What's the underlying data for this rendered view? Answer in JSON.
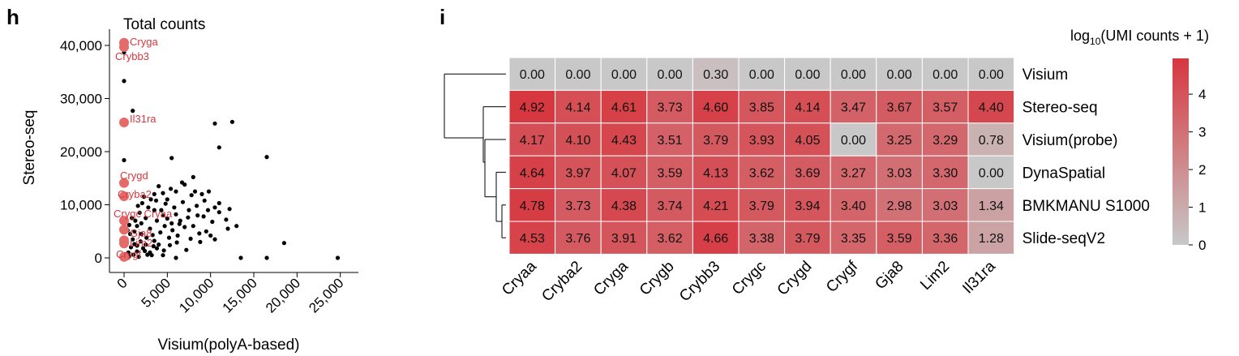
{
  "panels": {
    "h": "h",
    "i": "i"
  },
  "chart_data": [
    {
      "type": "scatter",
      "title": "Total counts",
      "xlabel": "Visium(polyA-based)",
      "ylabel": "Stereo-seq",
      "xlim": [
        -1000,
        26000
      ],
      "ylim": [
        -1000,
        42000
      ],
      "xticks": [
        0,
        5000,
        10000,
        15000,
        20000,
        25000
      ],
      "xtick_labels": [
        "0",
        "5,000",
        "10,000",
        "15,000",
        "20,000",
        "25,000"
      ],
      "yticks": [
        0,
        10000,
        20000,
        30000,
        40000
      ],
      "ytick_labels": [
        "0",
        "10,000",
        "20,000",
        "30,000",
        "40,000"
      ],
      "highlight_color": "#e46b68",
      "point_color": "#000000",
      "highlighted": [
        {
          "label": "Cryga",
          "x": 0,
          "y": 40500
        },
        {
          "label": "Crybb3",
          "x": 0,
          "y": 39700
        },
        {
          "label": "Il31ra",
          "x": 0,
          "y": 25500
        },
        {
          "label": "Crygd",
          "x": 0,
          "y": 14100
        },
        {
          "label": "Cryba2",
          "x": 0,
          "y": 11600
        },
        {
          "label": "Crygc",
          "x": 0,
          "y": 7000
        },
        {
          "label": "Cryaa",
          "x": 0,
          "y": 5300
        },
        {
          "label": "Gja8",
          "x": 0,
          "y": 3300
        },
        {
          "label": "Lim2",
          "x": 0,
          "y": 2700
        },
        {
          "label": "Crygf",
          "x": 0,
          "y": 200
        }
      ],
      "highlight_labels": [
        {
          "label": "Cryga"
        },
        {
          "label": "Crybb3"
        },
        {
          "label": "Il31ra"
        },
        {
          "label": "Crygd"
        },
        {
          "label": "Cryba2"
        },
        {
          "label": "Crygc Cryaa"
        },
        {
          "label": "Gja8"
        },
        {
          "label": "Lim2"
        },
        {
          "label": "Crygf"
        }
      ],
      "points": [
        [
          0,
          38700
        ],
        [
          0,
          33300
        ],
        [
          1000,
          27700
        ],
        [
          0,
          18400
        ],
        [
          10500,
          25300
        ],
        [
          12500,
          25600
        ],
        [
          11000,
          20800
        ],
        [
          16500,
          19000
        ],
        [
          5500,
          18800
        ],
        [
          18500,
          2800
        ],
        [
          13500,
          0
        ],
        [
          16500,
          0
        ],
        [
          24700,
          0
        ],
        [
          3500,
          12000
        ],
        [
          4000,
          13500
        ],
        [
          5000,
          11000
        ],
        [
          6000,
          12500
        ],
        [
          7000,
          13800
        ],
        [
          8000,
          15200
        ],
        [
          9000,
          12000
        ],
        [
          9800,
          12500
        ],
        [
          10500,
          9500
        ],
        [
          11000,
          10300
        ],
        [
          7500,
          9000
        ],
        [
          8500,
          8000
        ],
        [
          6500,
          7000
        ],
        [
          9500,
          5000
        ],
        [
          10500,
          3500
        ],
        [
          12000,
          5500
        ],
        [
          11800,
          7200
        ],
        [
          8800,
          3000
        ],
        [
          7200,
          1500
        ],
        [
          4500,
          500
        ],
        [
          6000,
          0
        ],
        [
          3500,
          9000
        ],
        [
          4500,
          8000
        ],
        [
          5500,
          6500
        ],
        [
          2500,
          7500
        ],
        [
          3000,
          5500
        ],
        [
          2000,
          4500
        ],
        [
          1500,
          6000
        ],
        [
          1000,
          3500
        ],
        [
          2500,
          2500
        ],
        [
          3500,
          3200
        ],
        [
          4200,
          4800
        ],
        [
          5200,
          3800
        ],
        [
          6200,
          4200
        ],
        [
          7000,
          5800
        ],
        [
          8000,
          6000
        ],
        [
          9200,
          7800
        ],
        [
          10200,
          6800
        ],
        [
          6800,
          10500
        ],
        [
          5800,
          9500
        ],
        [
          4800,
          10200
        ],
        [
          3800,
          7000
        ],
        [
          2800,
          9500
        ],
        [
          1800,
          8500
        ],
        [
          1200,
          5000
        ],
        [
          800,
          2000
        ],
        [
          1500,
          1200
        ],
        [
          2200,
          1800
        ],
        [
          3000,
          1000
        ],
        [
          3800,
          1800
        ],
        [
          500,
          1000
        ],
        [
          300,
          3000
        ],
        [
          700,
          4500
        ],
        [
          2000,
          6500
        ],
        [
          2600,
          3800
        ],
        [
          3300,
          4300
        ],
        [
          4000,
          2500
        ],
        [
          4700,
          6000
        ],
        [
          5600,
          5200
        ],
        [
          6400,
          6400
        ],
        [
          7400,
          7600
        ],
        [
          8400,
          9800
        ],
        [
          9300,
          10800
        ],
        [
          7800,
          11800
        ],
        [
          6000,
          8200
        ],
        [
          5000,
          7400
        ],
        [
          4300,
          9000
        ],
        [
          3700,
          10800
        ],
        [
          2300,
          11500
        ],
        [
          1600,
          9800
        ],
        [
          900,
          7500
        ],
        [
          1200,
          2600
        ],
        [
          1900,
          3100
        ],
        [
          2700,
          600
        ],
        [
          3400,
          2200
        ],
        [
          4600,
          1400
        ],
        [
          5300,
          2400
        ],
        [
          6100,
          2900
        ],
        [
          7700,
          3600
        ],
        [
          8700,
          4600
        ],
        [
          10000,
          4200
        ],
        [
          11000,
          8600
        ],
        [
          12200,
          9200
        ],
        [
          13000,
          6000
        ],
        [
          9700,
          9000
        ],
        [
          8200,
          12500
        ],
        [
          6700,
          14200
        ],
        [
          5400,
          13000
        ],
        [
          4500,
          12200
        ],
        [
          3100,
          11000
        ],
        [
          2100,
          10300
        ],
        [
          1300,
          7000
        ],
        [
          600,
          6200
        ],
        [
          400,
          5200
        ],
        [
          1100,
          600
        ],
        [
          1700,
          200
        ],
        [
          2400,
          1300
        ],
        [
          3200,
          500
        ],
        [
          600,
          300
        ],
        [
          1500,
          2300
        ]
      ]
    },
    {
      "type": "heatmap",
      "legend_title": "log10(UMI counts + 1)",
      "legend_title_base": "log",
      "legend_title_sub": "10",
      "legend_title_rest": "(UMI counts + 1)",
      "columns": [
        "Cryaa",
        "Cryba2",
        "Cryga",
        "Crygb",
        "Crybb3",
        "Crygc",
        "Crygd",
        "Crygf",
        "Gja8",
        "Lim2",
        "Il31ra"
      ],
      "rows": [
        "Visium",
        "Stereo-seq",
        "Visium(probe)",
        "DynaSpatial",
        "BMKMANU S1000",
        "Slide-seqV2"
      ],
      "values": [
        [
          0.0,
          0.0,
          0.0,
          0.0,
          0.3,
          0.0,
          0.0,
          0.0,
          0.0,
          0.0,
          0.0
        ],
        [
          4.92,
          4.14,
          4.61,
          3.73,
          4.6,
          3.85,
          4.14,
          3.47,
          3.67,
          3.57,
          4.4
        ],
        [
          4.17,
          4.1,
          4.43,
          3.51,
          3.79,
          3.93,
          4.05,
          0.0,
          3.25,
          3.29,
          0.78
        ],
        [
          4.64,
          3.97,
          4.07,
          3.59,
          4.13,
          3.62,
          3.69,
          3.27,
          3.03,
          3.3,
          0.0
        ],
        [
          4.78,
          3.73,
          4.38,
          3.74,
          4.21,
          3.79,
          3.94,
          3.4,
          2.98,
          3.03,
          1.34
        ],
        [
          4.53,
          3.76,
          3.91,
          3.62,
          4.66,
          3.38,
          3.79,
          3.35,
          3.59,
          3.36,
          1.28
        ]
      ],
      "display_values": [
        [
          "0.00",
          "0.00",
          "0.00",
          "0.00",
          "0.30",
          "0.00",
          "0.00",
          "0.00",
          "0.00",
          "0.00",
          "0.00"
        ],
        [
          "4.92",
          "4.14",
          "4.61",
          "3.73",
          "4.60",
          "3.85",
          "4.14",
          "3.47",
          "3.67",
          "3.57",
          "4.40"
        ],
        [
          "4.17",
          "4.10",
          "4.43",
          "3.51",
          "3.79",
          "3.93",
          "4.05",
          "0.00",
          "3.25",
          "3.29",
          "0.78"
        ],
        [
          "4.64",
          "3.97",
          "4.07",
          "3.59",
          "4.13",
          "3.62",
          "3.69",
          "3.27",
          "3.03",
          "3.30",
          "0.00"
        ],
        [
          "4.78",
          "3.73",
          "4.38",
          "3.74",
          "4.21",
          "3.79",
          "3.94",
          "3.40",
          "2.98",
          "3.03",
          "1.34"
        ],
        [
          "4.53",
          "3.76",
          "3.91",
          "3.62",
          "4.66",
          "3.38",
          "3.79",
          "3.35",
          "3.59",
          "3.36",
          "1.28"
        ]
      ],
      "vmin": 0,
      "vmax": 4.95,
      "colorbar_ticks": [
        0,
        1,
        2,
        3,
        4
      ],
      "colorbar_tick_labels": [
        "0",
        "1",
        "2",
        "3",
        "4"
      ],
      "color_low": "#c8c8c8",
      "color_high": "#d7373f",
      "dendrogram": true
    }
  ]
}
